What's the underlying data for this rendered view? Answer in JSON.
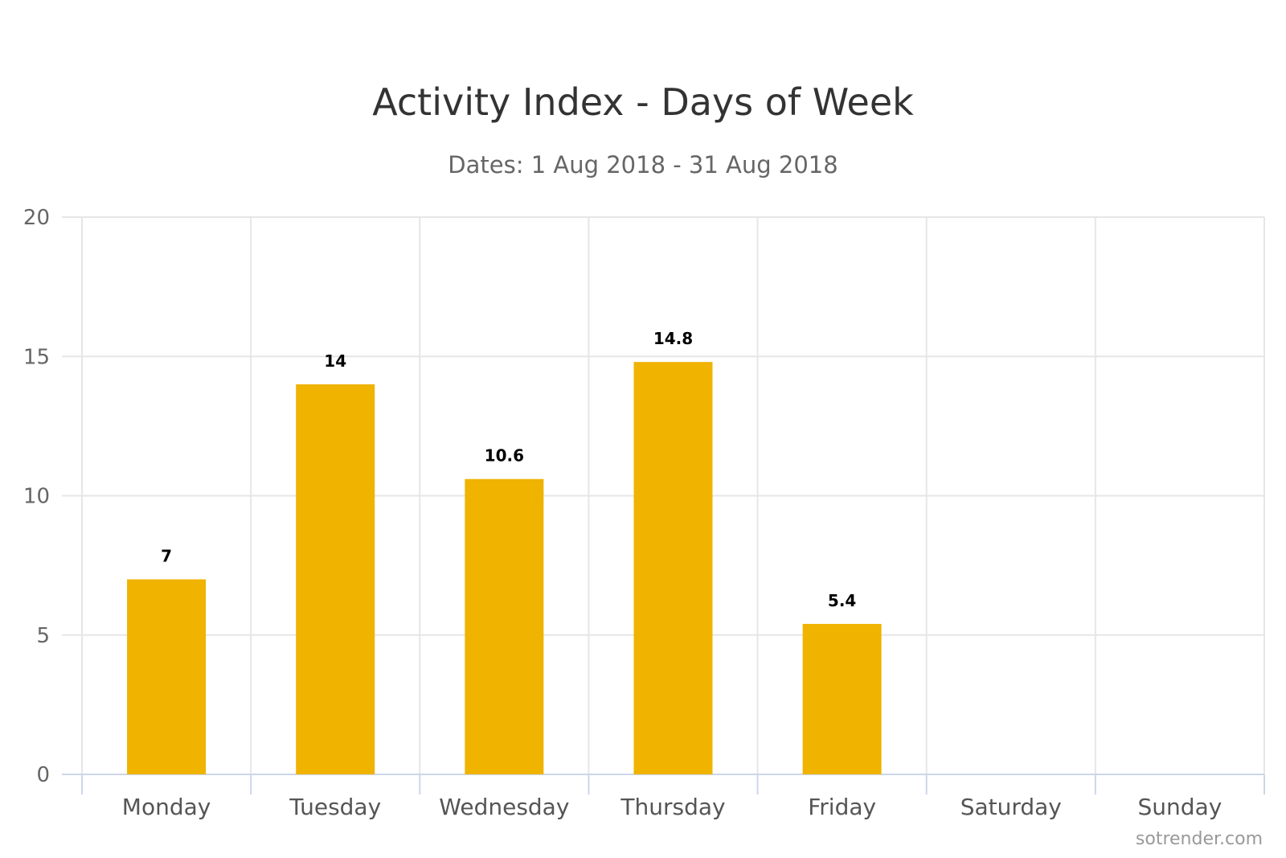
{
  "chart_data": {
    "type": "bar",
    "title": "Activity Index - Days of Week",
    "subtitle": "Dates: 1 Aug 2018 - 31 Aug 2018",
    "categories": [
      "Monday",
      "Tuesday",
      "Wednesday",
      "Thursday",
      "Friday",
      "Saturday",
      "Sunday"
    ],
    "values": [
      7,
      14,
      10.6,
      14.8,
      5.4,
      null,
      null
    ],
    "data_labels": [
      "7",
      "14",
      "10.6",
      "14.8",
      "5.4",
      "",
      ""
    ],
    "xlabel": "",
    "ylabel": "",
    "ylim": [
      0,
      20
    ],
    "yticks": [
      0,
      5,
      10,
      15,
      20
    ],
    "grid": true,
    "legend": "none",
    "bar_color": "#EFB300",
    "credit": "sotrender.com"
  }
}
